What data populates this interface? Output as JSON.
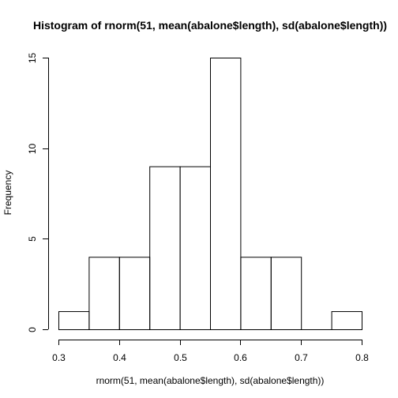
{
  "chart_data": {
    "type": "bar",
    "title": "Histogram of rnorm(51, mean(abalone$length), sd(abalone$length))",
    "xlabel": "rnorm(51, mean(abalone$length), sd(abalone$length))",
    "ylabel": "Frequency",
    "xlim": [
      0.3,
      0.8
    ],
    "ylim": [
      0,
      15
    ],
    "x_ticks": [
      0.3,
      0.4,
      0.5,
      0.6,
      0.7,
      0.8
    ],
    "x_tick_labels": [
      "0.3",
      "0.4",
      "0.5",
      "0.6",
      "0.7",
      "0.8"
    ],
    "y_ticks": [
      0,
      5,
      10,
      15
    ],
    "y_tick_labels": [
      "0",
      "5",
      "10",
      "15"
    ],
    "bins": [
      {
        "start": 0.3,
        "end": 0.35,
        "count": 1
      },
      {
        "start": 0.35,
        "end": 0.4,
        "count": 4
      },
      {
        "start": 0.4,
        "end": 0.45,
        "count": 4
      },
      {
        "start": 0.45,
        "end": 0.5,
        "count": 9
      },
      {
        "start": 0.5,
        "end": 0.55,
        "count": 9
      },
      {
        "start": 0.55,
        "end": 0.6,
        "count": 15
      },
      {
        "start": 0.6,
        "end": 0.65,
        "count": 4
      },
      {
        "start": 0.65,
        "end": 0.7,
        "count": 4
      },
      {
        "start": 0.7,
        "end": 0.75,
        "count": 0
      },
      {
        "start": 0.75,
        "end": 0.8,
        "count": 1
      }
    ],
    "grid": false,
    "legend": "none"
  }
}
